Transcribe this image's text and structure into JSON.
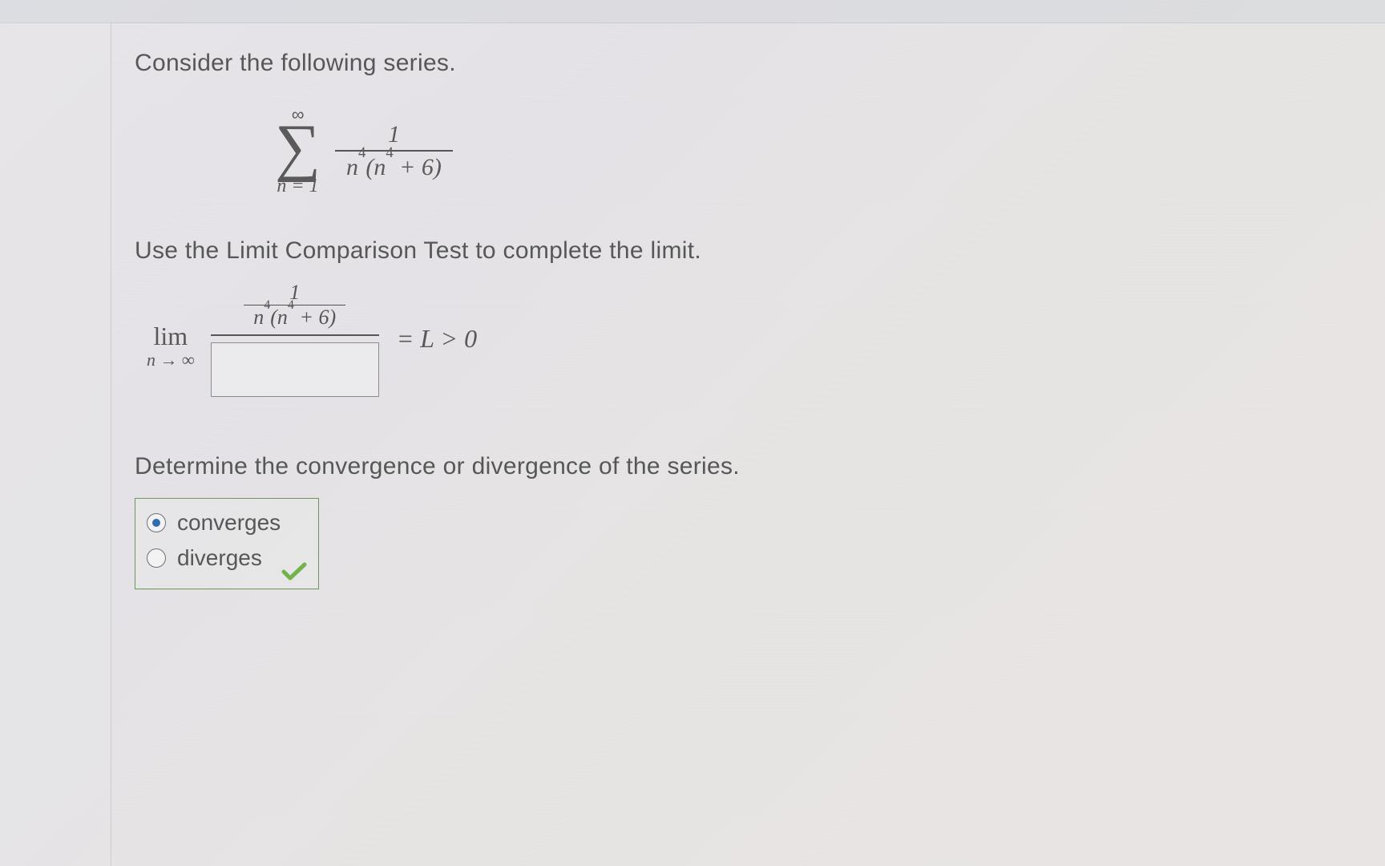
{
  "prompt1": "Consider the following series.",
  "series": {
    "sum_upper": "∞",
    "sum_lower": "n = 1",
    "frac_num": "1",
    "frac_den_html": "n<sup>4</sup>(n<sup>4</sup> + 6)"
  },
  "prompt2": "Use the Limit Comparison Test to complete the limit.",
  "limit": {
    "lim_label": "lim",
    "lim_under": "n → ∞",
    "top_num": "1",
    "top_den_html": "n<sup>4</sup>(n<sup>4</sup> + 6)",
    "equals": " = L > 0",
    "answer_value": ""
  },
  "prompt3": "Determine the convergence or divergence of the series.",
  "choices": {
    "converges": "converges",
    "diverges": "diverges",
    "selected": "converges",
    "correct": true
  },
  "colors": {
    "text": "#575757",
    "box_border": "#6a9a5a",
    "radio_fill": "#2f6fb0",
    "check": "#6fb34a"
  }
}
